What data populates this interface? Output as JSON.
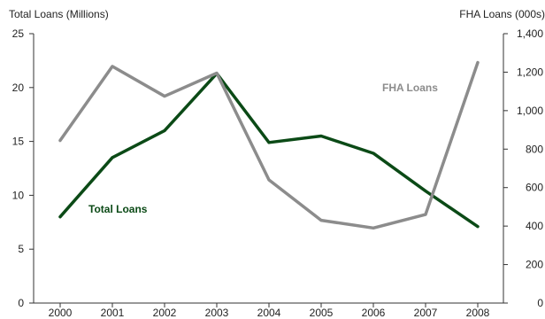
{
  "chart_data": {
    "type": "line",
    "categories": [
      "2000",
      "2001",
      "2002",
      "2003",
      "2004",
      "2005",
      "2006",
      "2007",
      "2008"
    ],
    "y_left": {
      "label": "Total Loans (Millions)",
      "range": [
        0,
        25
      ],
      "ticks": [
        "0",
        "5",
        "10",
        "15",
        "20",
        "25"
      ]
    },
    "y_right": {
      "label": "FHA Loans (000s)",
      "range": [
        0,
        1400
      ],
      "ticks": [
        "0",
        "200",
        "400",
        "600",
        "800",
        "1,000",
        "1,200",
        "1,400"
      ]
    },
    "series": [
      {
        "name": "Total Loans",
        "axis": "left",
        "color": "#0b4a16",
        "values": [
          8.0,
          13.5,
          16.0,
          21.3,
          14.9,
          15.5,
          13.9,
          10.4,
          7.1
        ]
      },
      {
        "name": "FHA Loans",
        "axis": "right",
        "color": "#8c8c8c",
        "values": [
          845,
          1230,
          1075,
          1195,
          640,
          430,
          390,
          460,
          1250
        ]
      }
    ],
    "grid": false,
    "legend": "inline labels"
  }
}
